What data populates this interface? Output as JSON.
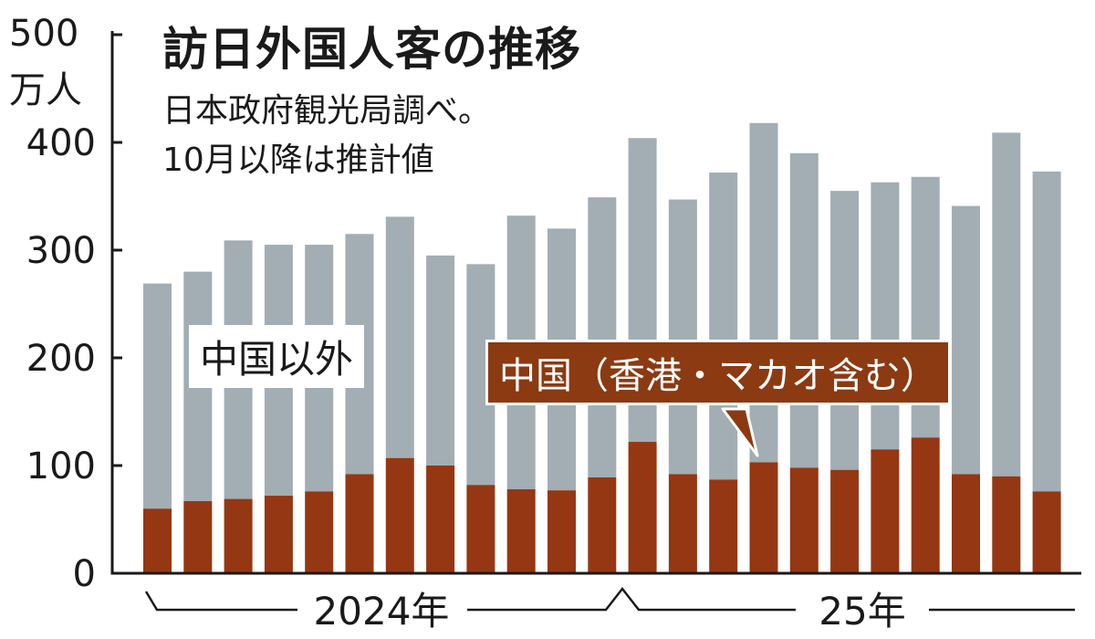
{
  "title": "訪日外国人客の推移",
  "subtitle_lines": [
    "日本政府観光局調べ。",
    "10月以降は推計値"
  ],
  "y_unit": "万人",
  "series_labels": {
    "other": "中国以外",
    "china": "中国（香港・マカオ含む）"
  },
  "colors": {
    "other": "#a2aeb3",
    "china": "#953712",
    "axis": "#1a1a1a"
  },
  "chart_data": {
    "type": "bar",
    "stacked": true,
    "title": "訪日外国人客の推移",
    "ylim": [
      0,
      500
    ],
    "yticks": [
      0,
      100,
      200,
      300,
      400,
      500
    ],
    "year_labels": [
      "2024年",
      "25年"
    ],
    "months": [
      "2024-01",
      "2024-02",
      "2024-03",
      "2024-04",
      "2024-05",
      "2024-06",
      "2024-07",
      "2024-08",
      "2024-09",
      "2024-10",
      "2024-11",
      "2024-12",
      "2025-01",
      "2025-02",
      "2025-03",
      "2025-04",
      "2025-05",
      "2025-06",
      "2025-07",
      "2025-08",
      "2025-09",
      "2025-10",
      "2025-11"
    ],
    "series": [
      {
        "name": "中国（香港・マカオ含む）",
        "values": [
          60,
          67,
          69,
          72,
          76,
          92,
          107,
          100,
          82,
          78,
          77,
          89,
          122,
          92,
          87,
          103,
          98,
          96,
          115,
          126,
          92,
          90,
          76
        ]
      },
      {
        "name": "中国以外",
        "values": [
          209,
          213,
          240,
          233,
          229,
          223,
          224,
          195,
          205,
          254,
          243,
          260,
          282,
          255,
          285,
          315,
          292,
          259,
          248,
          242,
          249,
          319,
          297
        ]
      }
    ]
  }
}
